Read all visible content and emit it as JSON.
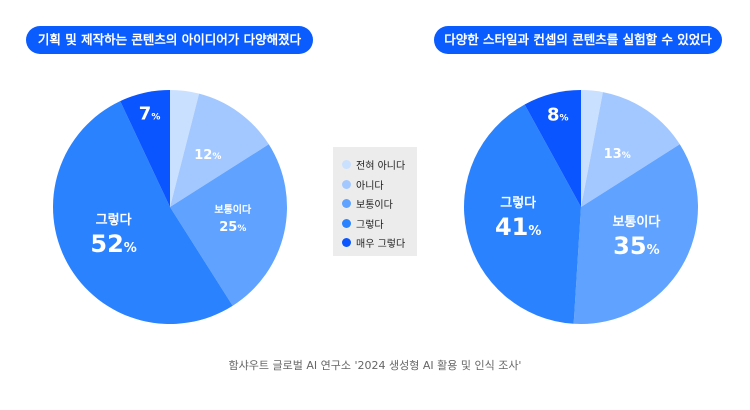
{
  "colors": [
    "#c9e0ff",
    "#a3c8ff",
    "#5fa2ff",
    "#2b82ff",
    "#0a55ff"
  ],
  "legend": [
    "전혀 아니다",
    "아니다",
    "보통이다",
    "그렇다",
    "매우 그렇다"
  ],
  "source": "함샤우트 글로벌 AI 연구소 '2024 생성형 AI 활용 및 인식 조사'",
  "chart_data": [
    {
      "type": "pie",
      "title": "기획 및 제작하는 콘텐츠의 아이디어가 다양해졌다",
      "categories": [
        "전혀 아니다",
        "아니다",
        "보통이다",
        "그렇다",
        "매우 그렇다"
      ],
      "values": [
        4,
        12,
        25,
        52,
        7
      ],
      "labels": [
        "",
        "12%",
        "25%",
        "52%",
        "7%"
      ],
      "named": {
        "2": "보통이다",
        "3": "그렇다"
      }
    },
    {
      "type": "pie",
      "title": "다양한 스타일과 컨셉의 콘텐츠를 실험할 수 있었다",
      "categories": [
        "전혀 아니다",
        "아니다",
        "보통이다",
        "그렇다",
        "매우 그렇다"
      ],
      "values": [
        3,
        13,
        35,
        41,
        8
      ],
      "labels": [
        "",
        "13%",
        "35%",
        "41%",
        "8%"
      ],
      "named": {
        "2": "보통이다",
        "3": "그렇다"
      }
    }
  ]
}
